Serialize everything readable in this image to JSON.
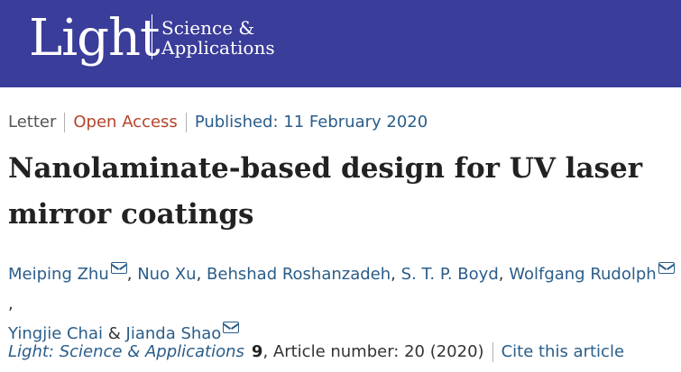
{
  "masthead": {
    "logo_main": "Light",
    "logo_sub_line1": "Science &",
    "logo_sub_line2": "Applications",
    "background": "#3a3d9a"
  },
  "article_meta": {
    "type": "Letter",
    "access": "Open Access",
    "published": "Published: 11 February 2020"
  },
  "title": "Nanolaminate-based design for UV laser mirror coatings",
  "authors": [
    {
      "name": "Meiping Zhu",
      "email": true
    },
    {
      "name": "Nuo Xu",
      "email": false
    },
    {
      "name": "Behshad Roshanzadeh",
      "email": false
    },
    {
      "name": "S. T. P. Boyd",
      "email": false
    },
    {
      "name": "Wolfgang Rudolph",
      "email": true
    },
    {
      "name": "Yingjie Chai",
      "email": false
    },
    {
      "name": "Jianda Shao",
      "email": true
    }
  ],
  "author_separators": [
    ",",
    "&"
  ],
  "citation": {
    "journal": "Light: Science & Applications",
    "volume": "9",
    "article": ", Article number: 20 (2020)",
    "cite_link": "Cite this article"
  }
}
